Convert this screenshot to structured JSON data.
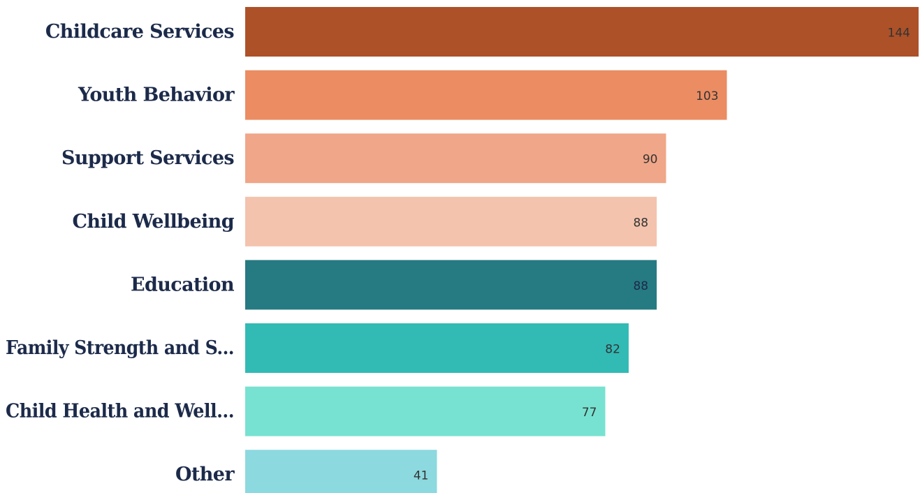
{
  "chart_data": {
    "type": "bar",
    "orientation": "horizontal",
    "categories": [
      "Childcare Services",
      "Youth Behavior",
      "Support Services",
      "Child Wellbeing",
      "Education",
      "Family Strength and S...",
      "Child Health and Well...",
      "Other"
    ],
    "values": [
      144,
      103,
      90,
      88,
      88,
      82,
      77,
      41
    ],
    "bar_colors": [
      "#ad5128",
      "#eb8c62",
      "#f0a688",
      "#f3c3ad",
      "#267a82",
      "#32bab5",
      "#77e2d1",
      "#8cd9df"
    ],
    "value_label_colors": [
      "#333333",
      "#333333",
      "#333333",
      "#333333",
      "#1c2a4a",
      "#333333",
      "#333333",
      "#333333"
    ],
    "xlim": [
      0,
      144
    ],
    "grid": false,
    "legend": "none"
  }
}
